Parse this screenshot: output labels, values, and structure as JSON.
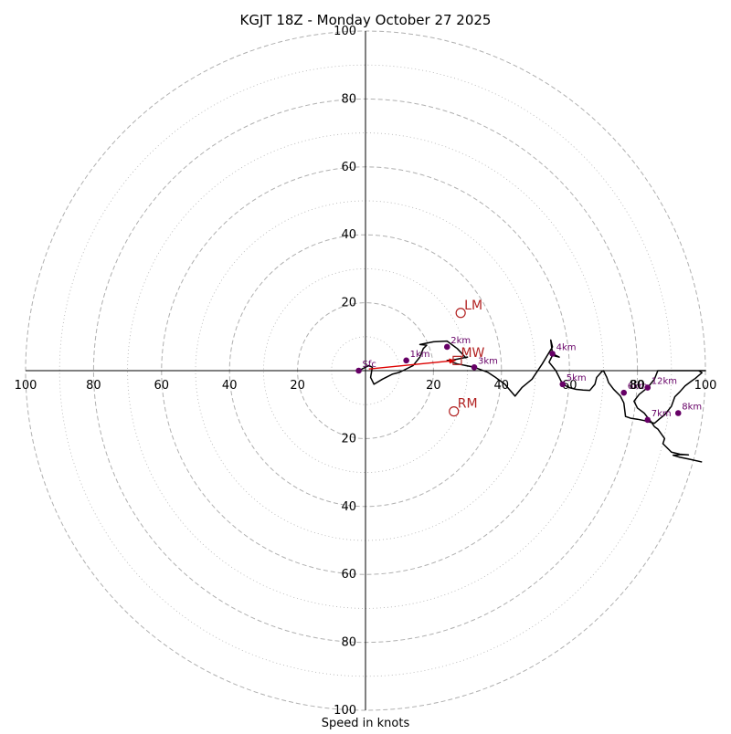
{
  "chart_data": {
    "type": "hodograph",
    "title": "KGJT 18Z - Monday October 27 2025",
    "xlabel": "Speed in knots",
    "units": "knots",
    "max_speed": 100,
    "ring_step": 10,
    "labeled_rings": [
      20,
      40,
      60,
      80,
      100
    ],
    "x_tick_labels": [
      "100",
      "80",
      "60",
      "40",
      "20",
      "20",
      "40",
      "60",
      "80",
      "100"
    ],
    "y_tick_labels": [
      "100",
      "80",
      "60",
      "40",
      "20",
      "20",
      "40",
      "60",
      "80",
      "100"
    ],
    "colors": {
      "grid": "#b0b0b0",
      "trace": "#000000",
      "height_marker": "#660066",
      "storm_marker": "#b22222",
      "mean_wind_arrow": "#dd0000"
    },
    "wind_trace": {
      "u": [
        -2,
        1,
        2,
        1.5,
        2.5,
        5,
        8,
        10,
        12,
        14,
        16,
        17,
        18,
        16,
        20,
        24,
        27,
        29.5,
        30,
        26,
        24,
        27,
        32,
        36,
        38,
        41,
        44,
        46,
        49,
        52,
        55,
        54.5,
        55,
        57,
        55,
        54,
        56,
        57,
        58,
        60,
        62,
        64,
        66,
        67.5,
        68,
        69.5,
        70,
        71,
        71.5,
        73,
        75,
        76,
        76.5,
        78,
        80,
        81,
        82,
        83,
        85,
        86.5,
        88,
        90,
        91,
        92.5,
        94,
        96,
        97,
        99,
        98,
        100,
        96,
        92,
        88,
        86,
        85,
        83,
        81.5,
        80.5,
        79,
        80,
        82,
        83,
        84,
        85,
        86,
        87,
        88,
        87.5,
        90,
        92.5,
        95,
        93,
        90.5,
        92.5,
        95,
        99
      ],
      "v": [
        0,
        1.5,
        1,
        -2,
        -4,
        -2.5,
        -1,
        -0.5,
        0.5,
        1.5,
        4,
        6.5,
        7.5,
        7.7,
        8.5,
        8.7,
        6.5,
        3.8,
        4,
        3.2,
        3,
        2,
        1,
        -0.5,
        -1.8,
        -4,
        -7.5,
        -5,
        -2.5,
        2,
        7,
        9,
        5,
        4,
        4.5,
        2.5,
        0,
        -2,
        -4,
        -5,
        -5.5,
        -5.7,
        -5.8,
        -4,
        -2,
        -0.3,
        0,
        -2,
        -3.5,
        -5.5,
        -7.5,
        -9.5,
        -13.5,
        -14,
        -14.3,
        -14.5,
        -14.7,
        -15,
        -15.5,
        -14.2,
        -13,
        -10.5,
        -7.7,
        -6.2,
        -4.5,
        -3,
        -2.3,
        -0.6,
        0,
        0,
        0,
        0,
        0,
        0,
        -2.5,
        -5,
        -6.2,
        -7,
        -9,
        -11,
        -12.5,
        -13.8,
        -15,
        -16.5,
        -17.2,
        -18.6,
        -20,
        -21.5,
        -24,
        -24.6,
        -24.8,
        -24.7,
        -24.9,
        -25.5,
        -26,
        -26.9
      ]
    },
    "height_markers": [
      {
        "label": "Sfc",
        "u": -2,
        "v": 0
      },
      {
        "label": "1km",
        "u": 12,
        "v": 3
      },
      {
        "label": "2km",
        "u": 24,
        "v": 7
      },
      {
        "label": "3km",
        "u": 32,
        "v": 1
      },
      {
        "label": "4km",
        "u": 55,
        "v": 5
      },
      {
        "label": "5km",
        "u": 58,
        "v": -4
      },
      {
        "label": "6km",
        "u": 76,
        "v": -6.5
      },
      {
        "label": "7km",
        "u": 83,
        "v": -14.5
      },
      {
        "label": "8km",
        "u": 92,
        "v": -12.5
      },
      {
        "label": "12km",
        "u": 83,
        "v": -5
      }
    ],
    "storm_motion": [
      {
        "label": "LM",
        "u": 28,
        "v": 17,
        "symbol": "circle"
      },
      {
        "label": "RM",
        "u": 26,
        "v": -12,
        "symbol": "circle"
      },
      {
        "label": "MW",
        "u": 27,
        "v": 3,
        "symbol": "square"
      }
    ],
    "mean_wind_arrow": {
      "from": {
        "u": 1,
        "v": 0.5
      },
      "to": {
        "u": 26.5,
        "v": 3
      }
    },
    "extra_label": {
      "text": "80",
      "u": 80,
      "v": -4
    }
  }
}
